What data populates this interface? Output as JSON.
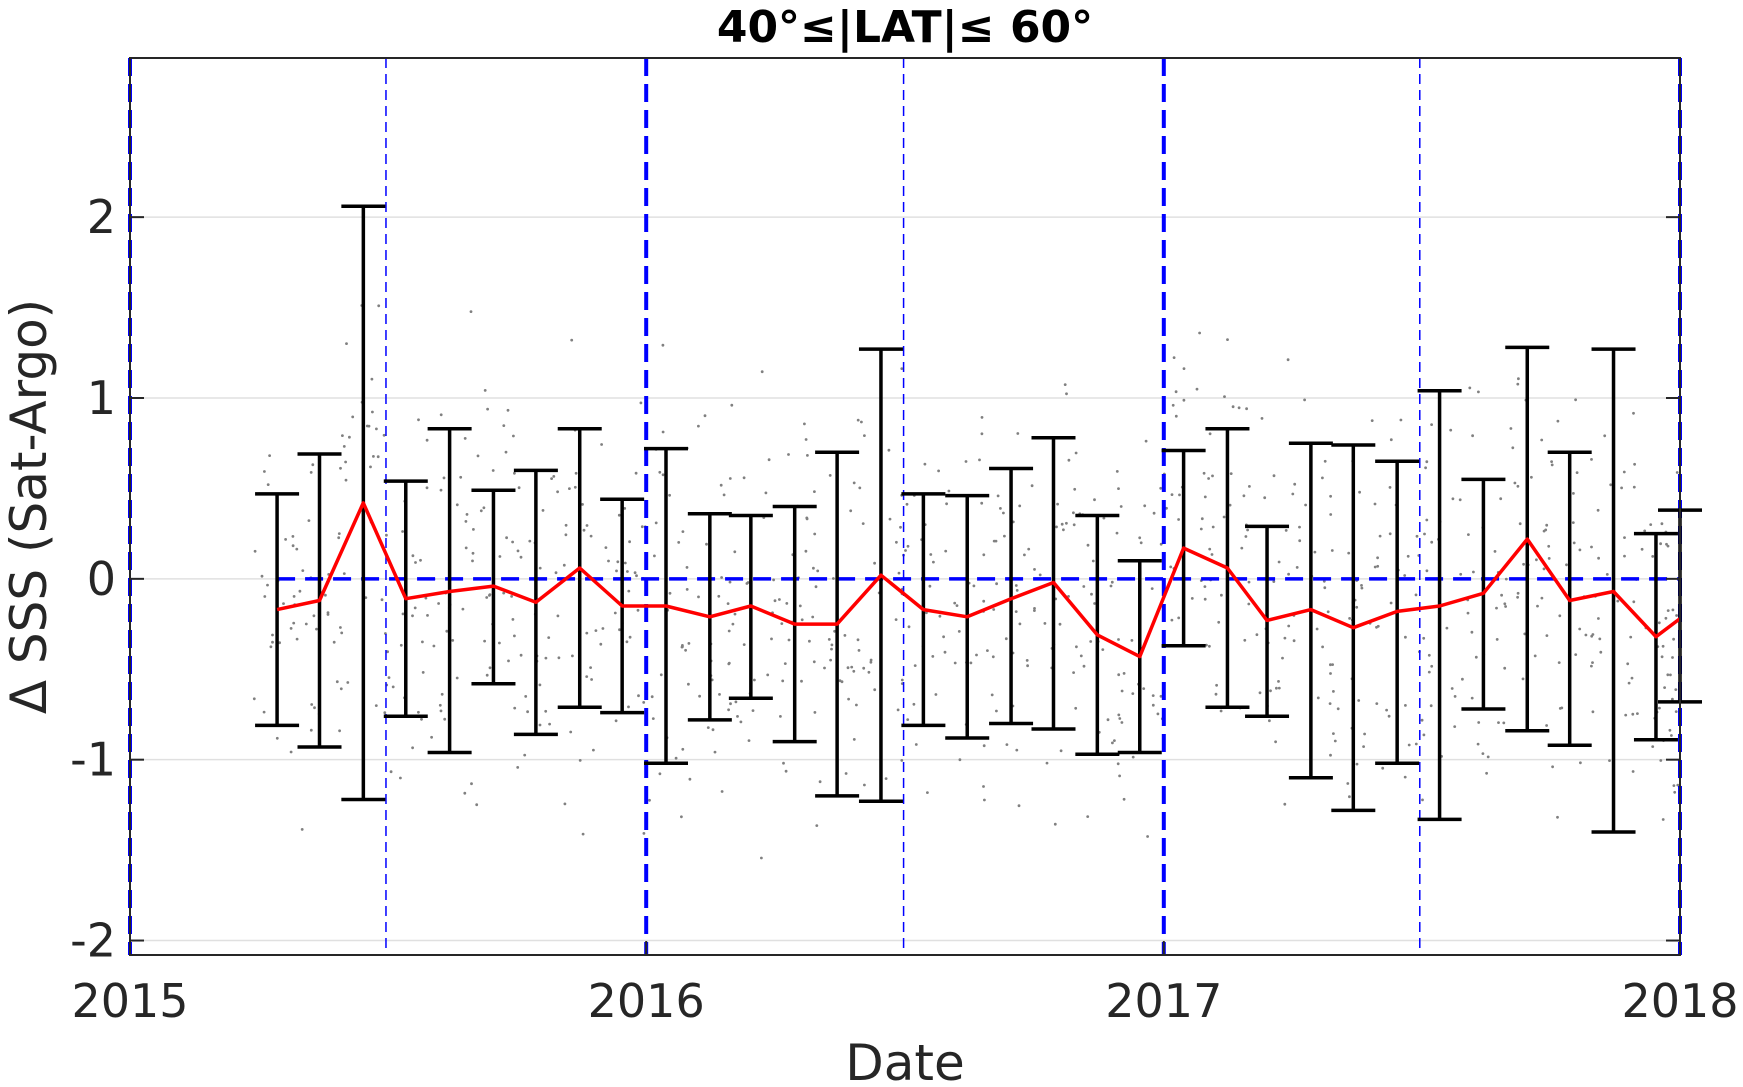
{
  "chart_data": {
    "type": "line",
    "title": "40°≤|LAT|≤ 60°",
    "xlabel": "Date",
    "ylabel": "Δ SSS (Sat-Argo)",
    "xlim": [
      "2015-01-01",
      "2018-01-01"
    ],
    "ylim": [
      -2.08,
      2.88
    ],
    "x_ticks": [
      "2015",
      "2016",
      "2017",
      "2018"
    ],
    "y_ticks": [
      -2,
      -1,
      0,
      1,
      2
    ],
    "grid": "horizontal",
    "colors": {
      "mean_line": "#ff0000",
      "error_bars": "#000000",
      "reference_lines": "#0000ff",
      "scatter": "#808080",
      "grid": "#e0e0e0"
    },
    "reference_lines": {
      "horizontal_dashed": 0,
      "year_boundaries": [
        "2015-01-01",
        "2016-01-01",
        "2017-01-01",
        "2018-01-01"
      ],
      "half_year": [
        "2015-07-01",
        "2016-07-01",
        "2017-07-01"
      ]
    },
    "series": [
      {
        "style": "red line with black error bars",
        "dates": [
          "2015-04-15",
          "2015-05-15",
          "2015-06-15",
          "2015-07-15",
          "2015-08-15",
          "2015-09-15",
          "2015-10-15",
          "2015-11-15",
          "2015-12-15",
          "2016-01-15",
          "2016-02-15",
          "2016-03-15",
          "2016-04-15",
          "2016-05-15",
          "2016-06-15",
          "2016-07-15",
          "2016-08-15",
          "2016-09-15",
          "2016-10-15",
          "2016-11-15",
          "2016-12-15",
          "2017-01-15",
          "2017-02-15",
          "2017-03-15",
          "2017-04-15",
          "2017-05-15",
          "2017-06-15",
          "2017-07-15",
          "2017-08-15",
          "2017-09-15",
          "2017-10-15",
          "2017-11-15",
          "2017-12-15",
          "2018-01-01"
        ],
        "mean": [
          -0.17,
          -0.12,
          0.42,
          -0.11,
          -0.07,
          -0.04,
          -0.13,
          0.06,
          -0.15,
          -0.15,
          -0.21,
          -0.15,
          -0.25,
          -0.25,
          0.02,
          -0.17,
          -0.21,
          -0.11,
          -0.02,
          -0.31,
          -0.43,
          0.17,
          0.06,
          -0.23,
          -0.17,
          -0.27,
          -0.18,
          -0.15,
          -0.08,
          0.22,
          -0.12,
          -0.07,
          -0.32,
          -0.22
        ],
        "upper": [
          0.47,
          0.69,
          2.06,
          0.54,
          0.83,
          0.49,
          0.6,
          0.83,
          0.44,
          0.72,
          0.36,
          0.35,
          0.4,
          0.7,
          1.27,
          0.47,
          0.46,
          0.61,
          0.78,
          0.35,
          0.1,
          0.71,
          0.83,
          0.29,
          0.75,
          0.74,
          0.65,
          1.04,
          0.55,
          1.28,
          0.7,
          1.27,
          0.25,
          0.38
        ],
        "lower": [
          -0.81,
          -0.93,
          -1.22,
          -0.76,
          -0.96,
          -0.58,
          -0.86,
          -0.71,
          -0.74,
          -1.02,
          -0.78,
          -0.66,
          -0.9,
          -1.2,
          -1.23,
          -0.81,
          -0.88,
          -0.8,
          -0.83,
          -0.97,
          -0.96,
          -0.37,
          -0.71,
          -0.76,
          -1.1,
          -1.28,
          -1.02,
          -1.33,
          -0.72,
          -0.84,
          -0.92,
          -1.4,
          -0.89,
          -0.68
        ]
      }
    ],
    "scatter_points_note": ""
  }
}
